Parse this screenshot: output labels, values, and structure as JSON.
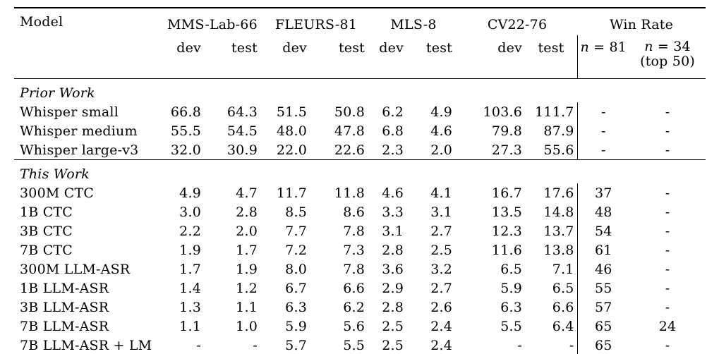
{
  "table": {
    "header": {
      "model": "Model",
      "groups": [
        {
          "label": "MMS-Lab-66",
          "sub": [
            "dev",
            "test"
          ]
        },
        {
          "label": "FLEURS-81",
          "sub": [
            "dev",
            "test"
          ]
        },
        {
          "label": "MLS-8",
          "sub": [
            "dev",
            "test"
          ]
        },
        {
          "label": "CV22-76",
          "sub": [
            "dev",
            "test"
          ]
        }
      ],
      "win_rate": {
        "label": "Win Rate",
        "col_a": {
          "var": "n",
          "rest": " = 81"
        },
        "col_b": {
          "var": "n",
          "rest": " = 34",
          "note": "(top 50)"
        }
      }
    },
    "sections": [
      {
        "label": "Prior Work",
        "rows": [
          {
            "model": "Whisper small",
            "values": [
              "66.8",
              "64.3",
              "51.5",
              "50.8",
              "6.2",
              "4.9",
              "103.6",
              "111.7",
              "-",
              "-"
            ]
          },
          {
            "model": "Whisper medium",
            "values": [
              "55.5",
              "54.5",
              "48.0",
              "47.8",
              "6.8",
              "4.6",
              "79.8",
              "87.9",
              "-",
              "-"
            ]
          },
          {
            "model": "Whisper large-v3",
            "values": [
              "32.0",
              "30.9",
              "22.0",
              "22.6",
              "2.3",
              "2.0",
              "27.3",
              "55.6",
              "-",
              "-"
            ]
          }
        ]
      },
      {
        "label": "This Work",
        "rows": [
          {
            "model": "300M CTC",
            "values": [
              "4.9",
              "4.7",
              "11.7",
              "11.8",
              "4.6",
              "4.1",
              "16.7",
              "17.6",
              "37",
              "-"
            ]
          },
          {
            "model": "1B CTC",
            "values": [
              "3.0",
              "2.8",
              "8.5",
              "8.6",
              "3.3",
              "3.1",
              "13.5",
              "14.8",
              "48",
              "-"
            ]
          },
          {
            "model": "3B CTC",
            "values": [
              "2.2",
              "2.0",
              "7.7",
              "7.8",
              "3.1",
              "2.7",
              "12.3",
              "13.7",
              "54",
              "-"
            ]
          },
          {
            "model": "7B CTC",
            "values": [
              "1.9",
              "1.7",
              "7.2",
              "7.3",
              "2.8",
              "2.5",
              "11.6",
              "13.8",
              "61",
              "-"
            ]
          },
          {
            "model": "300M LLM-ASR",
            "values": [
              "1.7",
              "1.9",
              "8.0",
              "7.8",
              "3.6",
              "3.2",
              "6.5",
              "7.1",
              "46",
              "-"
            ]
          },
          {
            "model": "1B LLM-ASR",
            "values": [
              "1.4",
              "1.2",
              "6.7",
              "6.6",
              "2.9",
              "2.7",
              "5.9",
              "6.5",
              "55",
              "-"
            ]
          },
          {
            "model": "3B LLM-ASR",
            "values": [
              "1.3",
              "1.1",
              "6.3",
              "6.2",
              "2.8",
              "2.6",
              "6.3",
              "6.6",
              "57",
              "-"
            ]
          },
          {
            "model": "7B LLM-ASR",
            "values": [
              "1.1",
              "1.0",
              "5.9",
              "5.6",
              "2.5",
              "2.4",
              "5.5",
              "6.4",
              "65",
              "24"
            ]
          },
          {
            "model": "7B LLM-ASR + LM",
            "values": [
              "-",
              "-",
              "5.7",
              "5.5",
              "2.5",
              "2.4",
              "-",
              "-",
              "65",
              "-"
            ]
          }
        ]
      }
    ]
  }
}
